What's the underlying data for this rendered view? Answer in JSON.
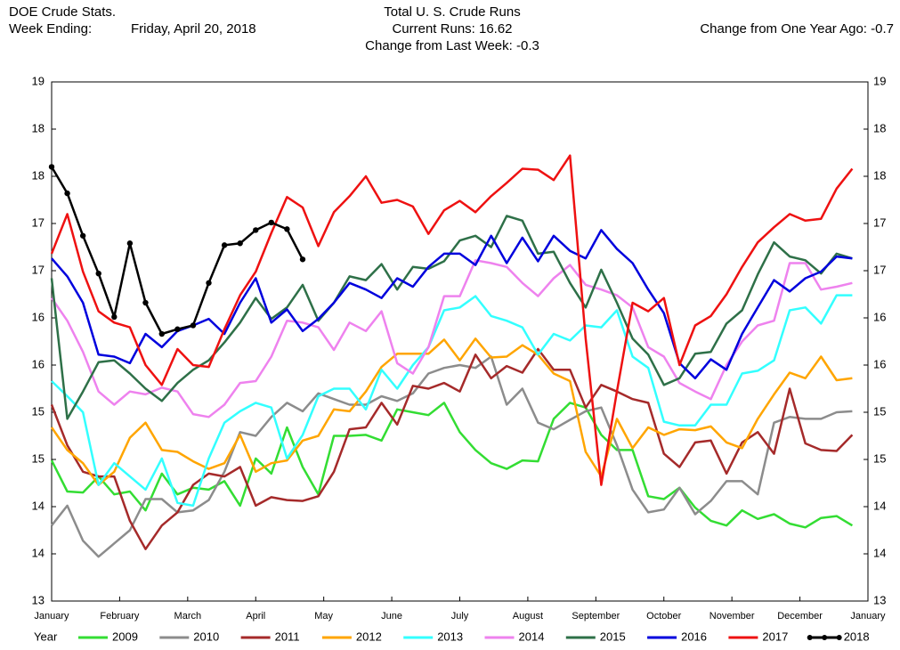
{
  "chart_data": {
    "type": "line",
    "source": "DOE Crude Stats.",
    "week_label": "Week Ending:",
    "week_ending": "Friday, April 20, 2018",
    "title": "Total U. S. Crude Runs",
    "current_runs": "Current Runs: 16.62",
    "weekly_change": "Change from Last Week:  -0.3",
    "yearly_change": "Change from One Year Ago:  -0.7",
    "legend_title": "Year",
    "grid": false,
    "xlim": [
      0,
      12
    ],
    "xticks": [
      {
        "value": 0,
        "label": "January"
      },
      {
        "value": 1,
        "label": "February"
      },
      {
        "value": 2,
        "label": "March"
      },
      {
        "value": 3,
        "label": "April"
      },
      {
        "value": 4,
        "label": "May"
      },
      {
        "value": 5,
        "label": "June"
      },
      {
        "value": 6,
        "label": "July"
      },
      {
        "value": 7,
        "label": "August"
      },
      {
        "value": 8,
        "label": "September"
      },
      {
        "value": 9,
        "label": "October"
      },
      {
        "value": 10,
        "label": "November"
      },
      {
        "value": 11,
        "label": "December"
      },
      {
        "value": 12,
        "label": "January"
      }
    ],
    "ylim": [
      13.5,
      19
    ],
    "yticks": [
      {
        "value": 13.5,
        "label": "13"
      },
      14,
      {
        "value": 14.5,
        "label": "14"
      },
      15,
      {
        "value": 15.5,
        "label": "15"
      },
      16,
      {
        "value": 16.5,
        "label": "16"
      },
      17,
      {
        "value": 17.5,
        "label": "17"
      },
      18,
      {
        "value": 18.5,
        "label": "18"
      },
      19
    ],
    "x": [
      0,
      0.23,
      0.46,
      0.69,
      0.92,
      1.15,
      1.38,
      1.62,
      1.85,
      2.08,
      2.31,
      2.54,
      2.77,
      3.0,
      3.23,
      3.46,
      3.69,
      3.92,
      4.15,
      4.38,
      4.62,
      4.85,
      5.08,
      5.31,
      5.54,
      5.77,
      6.0,
      6.23,
      6.46,
      6.69,
      6.92,
      7.15,
      7.38,
      7.62,
      7.85,
      8.08,
      8.31,
      8.54,
      8.77,
      9.0,
      9.23,
      9.46,
      9.69,
      9.92,
      10.15,
      10.38,
      10.62,
      10.85,
      11.08,
      11.31,
      11.54,
      11.77
    ],
    "series": [
      {
        "name": "2009",
        "color": "#33dd33",
        "values": [
          14.99,
          14.66,
          14.65,
          14.82,
          14.63,
          14.66,
          14.46,
          14.85,
          14.63,
          14.7,
          14.68,
          14.77,
          14.51,
          15.01,
          14.85,
          15.34,
          14.92,
          14.63,
          15.25,
          15.25,
          15.26,
          15.2,
          15.53,
          15.5,
          15.47,
          15.6,
          15.29,
          15.1,
          14.96,
          14.9,
          14.99,
          14.98,
          15.43,
          15.6,
          15.55,
          15.26,
          15.1,
          15.1,
          14.61,
          14.58,
          14.7,
          14.49,
          14.35,
          14.3,
          14.46,
          14.37,
          14.42,
          14.32,
          14.28,
          14.38,
          14.4,
          14.3
        ]
      },
      {
        "name": "2010",
        "color": "#8c8c8c",
        "values": [
          14.3,
          14.51,
          14.14,
          13.97,
          14.11,
          14.25,
          14.58,
          14.58,
          14.44,
          14.46,
          14.57,
          14.87,
          15.29,
          15.25,
          15.45,
          15.6,
          15.51,
          15.7,
          15.64,
          15.58,
          15.58,
          15.67,
          15.62,
          15.7,
          15.91,
          15.97,
          16.0,
          15.97,
          16.09,
          15.58,
          15.75,
          15.39,
          15.32,
          15.42,
          15.51,
          15.55,
          15.15,
          14.68,
          14.44,
          14.47,
          14.7,
          14.42,
          14.56,
          14.77,
          14.77,
          14.63,
          15.39,
          15.45,
          15.43,
          15.43,
          15.5,
          15.51
        ]
      },
      {
        "name": "2011",
        "color": "#a52a2a",
        "values": [
          15.58,
          15.15,
          14.87,
          14.82,
          14.82,
          14.35,
          14.05,
          14.3,
          14.44,
          14.73,
          14.85,
          14.82,
          14.92,
          14.51,
          14.6,
          14.57,
          14.56,
          14.61,
          14.87,
          15.32,
          15.34,
          15.6,
          15.37,
          15.78,
          15.75,
          15.81,
          15.72,
          16.11,
          15.86,
          15.99,
          15.92,
          16.17,
          15.95,
          15.95,
          15.55,
          15.79,
          15.72,
          15.64,
          15.6,
          15.06,
          14.92,
          15.18,
          15.2,
          14.85,
          15.18,
          15.29,
          15.06,
          15.75,
          15.17,
          15.1,
          15.09,
          15.26
        ]
      },
      {
        "name": "2012",
        "color": "#ffa500",
        "values": [
          15.34,
          15.1,
          14.96,
          14.73,
          14.87,
          15.23,
          15.39,
          15.1,
          15.08,
          14.98,
          14.9,
          14.96,
          15.26,
          14.87,
          14.96,
          14.99,
          15.2,
          15.25,
          15.53,
          15.51,
          15.72,
          15.98,
          16.12,
          16.12,
          16.12,
          16.27,
          16.05,
          16.28,
          16.08,
          16.09,
          16.21,
          16.11,
          15.91,
          15.83,
          15.08,
          14.82,
          15.43,
          15.12,
          15.34,
          15.26,
          15.32,
          15.31,
          15.35,
          15.18,
          15.12,
          15.43,
          15.69,
          15.92,
          15.86,
          16.09,
          15.84,
          15.86
        ]
      },
      {
        "name": "2013",
        "color": "#33ffff",
        "values": [
          15.83,
          15.67,
          15.5,
          14.73,
          14.96,
          14.82,
          14.68,
          15.01,
          14.54,
          14.51,
          15.01,
          15.39,
          15.51,
          15.6,
          15.55,
          15.01,
          15.26,
          15.67,
          15.75,
          15.75,
          15.53,
          15.95,
          15.75,
          16.0,
          16.19,
          16.58,
          16.61,
          16.73,
          16.52,
          16.47,
          16.4,
          16.11,
          16.33,
          16.26,
          16.42,
          16.4,
          16.58,
          16.09,
          15.97,
          15.4,
          15.36,
          15.36,
          15.58,
          15.58,
          15.91,
          15.94,
          16.05,
          16.58,
          16.61,
          16.44,
          16.74,
          16.74
        ]
      },
      {
        "name": "2014",
        "color": "#ee82ee",
        "values": [
          16.71,
          16.47,
          16.14,
          15.72,
          15.58,
          15.72,
          15.69,
          15.76,
          15.72,
          15.48,
          15.45,
          15.58,
          15.81,
          15.83,
          16.09,
          16.47,
          16.45,
          16.4,
          16.16,
          16.45,
          16.36,
          16.57,
          16.02,
          15.91,
          16.19,
          16.73,
          16.73,
          17.11,
          17.08,
          17.04,
          16.87,
          16.73,
          16.92,
          17.06,
          16.85,
          16.8,
          16.74,
          16.61,
          16.19,
          16.09,
          15.81,
          15.72,
          15.64,
          16.0,
          16.25,
          16.42,
          16.47,
          17.08,
          17.08,
          16.8,
          16.83,
          16.87
        ]
      },
      {
        "name": "2015",
        "color": "#2e7048",
        "values": [
          16.92,
          15.43,
          15.72,
          16.03,
          16.05,
          15.91,
          15.75,
          15.62,
          15.81,
          15.95,
          16.05,
          16.24,
          16.45,
          16.71,
          16.49,
          16.61,
          16.85,
          16.47,
          16.66,
          16.94,
          16.9,
          17.07,
          16.8,
          17.04,
          17.02,
          17.1,
          17.32,
          17.37,
          17.25,
          17.58,
          17.53,
          17.18,
          17.2,
          16.87,
          16.61,
          17.01,
          16.66,
          16.28,
          16.11,
          15.79,
          15.86,
          16.12,
          16.14,
          16.44,
          16.58,
          16.96,
          17.3,
          17.15,
          17.11,
          16.97,
          17.18,
          17.13
        ]
      },
      {
        "name": "2016",
        "color": "#0000dd",
        "values": [
          17.13,
          16.94,
          16.66,
          16.11,
          16.09,
          16.02,
          16.33,
          16.19,
          16.36,
          16.42,
          16.49,
          16.33,
          16.66,
          16.92,
          16.45,
          16.59,
          16.36,
          16.49,
          16.66,
          16.87,
          16.8,
          16.71,
          16.92,
          16.83,
          17.04,
          17.18,
          17.18,
          17.06,
          17.37,
          17.08,
          17.35,
          17.1,
          17.37,
          17.21,
          17.13,
          17.43,
          17.23,
          17.08,
          16.8,
          16.55,
          16.02,
          15.86,
          16.06,
          15.95,
          16.33,
          16.61,
          16.9,
          16.78,
          16.92,
          16.99,
          17.15,
          17.13
        ]
      },
      {
        "name": "2017",
        "color": "#ee1111",
        "values": [
          17.18,
          17.6,
          16.99,
          16.57,
          16.45,
          16.4,
          16.0,
          15.79,
          16.17,
          16.0,
          15.98,
          16.38,
          16.74,
          16.99,
          17.4,
          17.78,
          17.67,
          17.26,
          17.62,
          17.79,
          18.0,
          17.72,
          17.75,
          17.68,
          17.39,
          17.64,
          17.74,
          17.62,
          17.79,
          17.93,
          18.08,
          18.07,
          17.96,
          18.22,
          16.28,
          14.73,
          15.72,
          16.66,
          16.57,
          16.71,
          16.0,
          16.42,
          16.52,
          16.75,
          17.04,
          17.3,
          17.46,
          17.6,
          17.53,
          17.55,
          17.87,
          18.08
        ]
      },
      {
        "name": "2018",
        "color": "#000000",
        "marker": true,
        "values": [
          18.1,
          17.82,
          17.37,
          16.97,
          16.51,
          17.29,
          16.66,
          16.33,
          16.38,
          16.42,
          16.87,
          17.27,
          17.29,
          17.43,
          17.51,
          17.44,
          17.12,
          null,
          null,
          null,
          null,
          null,
          null,
          null,
          null,
          null,
          null,
          null,
          null,
          null,
          null,
          null,
          null,
          null,
          null,
          null,
          null,
          null,
          null,
          null,
          null,
          null,
          null,
          null,
          null,
          null,
          null,
          null,
          null,
          null,
          null,
          null
        ]
      }
    ]
  }
}
